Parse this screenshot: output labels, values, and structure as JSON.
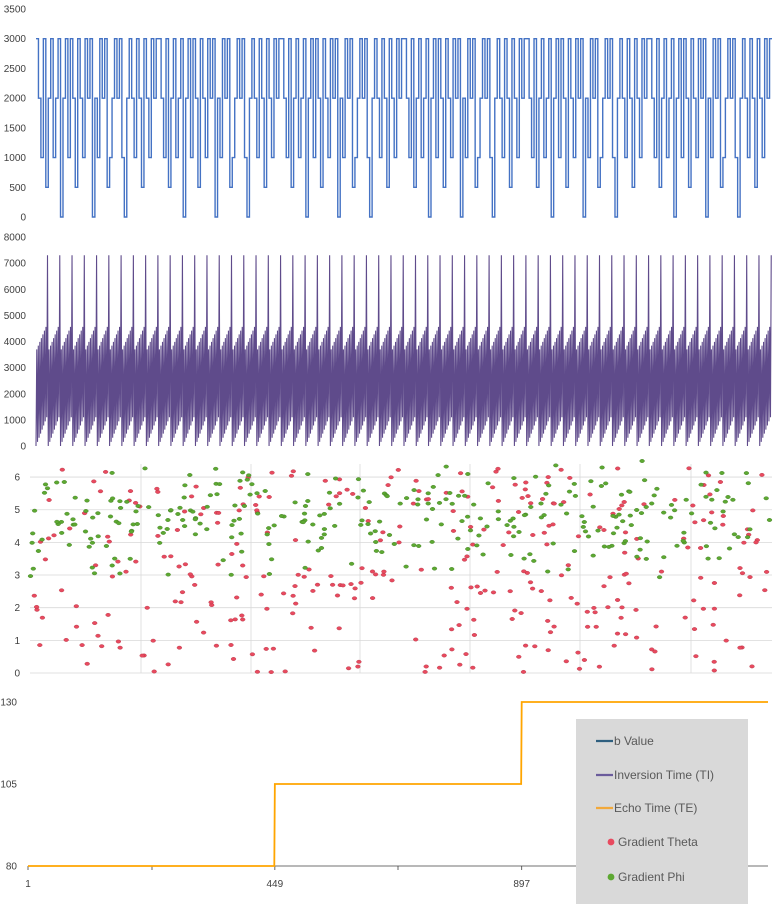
{
  "chart_data": [
    {
      "type": "line",
      "panel": "b-value",
      "title": "",
      "xlabel": "",
      "ylabel": "",
      "ylim": [
        0,
        3500
      ],
      "yticks": [
        0,
        500,
        1000,
        1500,
        2000,
        2500,
        3000,
        3500
      ],
      "grid": false,
      "series": [
        {
          "name": "b Value",
          "color": "#4472C4",
          "pattern": [
            3000,
            2000,
            1000,
            3000,
            500,
            2000,
            3000,
            1000,
            2000,
            3000,
            0,
            2000,
            3000,
            1000,
            3000,
            2000,
            500,
            3000,
            2000,
            1000,
            3000,
            2000,
            3000,
            0,
            2000,
            1000,
            3000,
            2000,
            3000,
            500,
            1000,
            2000,
            3000,
            2000,
            3000,
            1000,
            0,
            2000,
            3000,
            2000,
            1000,
            3000,
            2000,
            500,
            3000,
            2000,
            1000,
            3000,
            2000,
            3000
          ],
          "steps_shown": 300
        }
      ]
    },
    {
      "type": "line",
      "panel": "inversion-time",
      "title": "",
      "xlabel": "",
      "ylabel": "",
      "ylim": [
        0,
        8000
      ],
      "yticks": [
        0,
        1000,
        2000,
        3000,
        4000,
        5000,
        6000,
        7000,
        8000
      ],
      "grid": false,
      "series": [
        {
          "name": "Inversion Time (TI)",
          "color": "#5F4B8B",
          "peak": 7300,
          "upper_envelope": [
            3700,
            4700
          ],
          "lower_envelope": [
            0,
            1100
          ],
          "spike_count": 60
        }
      ]
    },
    {
      "type": "scatter",
      "panel": "gradients",
      "title": "",
      "xlabel": "",
      "ylabel": "",
      "ylim": [
        0,
        6.4
      ],
      "yticks": [
        0,
        1,
        2,
        3,
        4,
        5,
        6
      ],
      "grid": true,
      "series": [
        {
          "name": "Gradient Theta",
          "color": "#E84A5F",
          "range": [
            0,
            6.28
          ],
          "count": 330
        },
        {
          "name": "Gradient Phi",
          "color": "#5DA832",
          "range": [
            3.3,
            6.2
          ],
          "count": 300
        }
      ]
    },
    {
      "type": "line",
      "panel": "echo-time",
      "title": "",
      "xlabel": "",
      "ylabel": "",
      "xlim": [
        1,
        1344
      ],
      "xticks": [
        1,
        449,
        897
      ],
      "ylim": [
        80,
        130
      ],
      "yticks": [
        80,
        105,
        130
      ],
      "grid": false,
      "legend": "right",
      "series": [
        {
          "name": "Echo Time (TE)",
          "color": "#FFA500",
          "x": [
            1,
            448,
            449,
            896,
            897,
            1344
          ],
          "y": [
            80,
            80,
            105,
            105,
            130,
            130
          ]
        }
      ]
    }
  ],
  "legend": {
    "items": [
      {
        "label": "b Value",
        "marker": "line",
        "color": "#2F5F7F"
      },
      {
        "label": "Inversion Time (TI)",
        "marker": "line",
        "color": "#6B5C9C"
      },
      {
        "label": "Echo Time (TE)",
        "marker": "line",
        "color": "#F2A93B"
      },
      {
        "label": "Gradient Theta",
        "marker": "dot",
        "color": "#E84A5F"
      },
      {
        "label": "Gradient Phi",
        "marker": "dot",
        "color": "#5DA832"
      }
    ]
  },
  "colors": {
    "legend_bg": "#D9D9D9",
    "grid": "#D9D9D9",
    "axis": "#404040"
  }
}
